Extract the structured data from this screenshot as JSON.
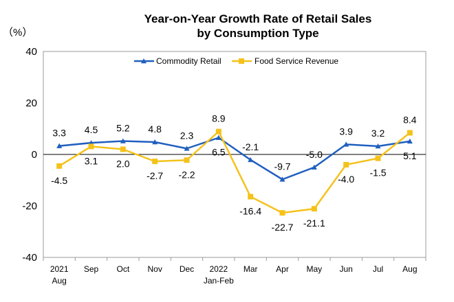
{
  "chart_data": {
    "type": "line",
    "title_line1": "Year-on-Year Growth Rate of Retail Sales",
    "title_line2": "by Consumption Type",
    "unit": "（%）",
    "ylim": [
      -40,
      40
    ],
    "yticks": [
      "40",
      "20",
      "0",
      "-20",
      "-40"
    ],
    "categories": [
      {
        "line1": "2021",
        "line2": "Aug"
      },
      {
        "line1": "Sep",
        "line2": ""
      },
      {
        "line1": "Oct",
        "line2": ""
      },
      {
        "line1": "Nov",
        "line2": ""
      },
      {
        "line1": "Dec",
        "line2": ""
      },
      {
        "line1": "2022",
        "line2": "Jan-Feb"
      },
      {
        "line1": "Mar",
        "line2": ""
      },
      {
        "line1": "Apr",
        "line2": ""
      },
      {
        "line1": "May",
        "line2": ""
      },
      {
        "line1": "Jun",
        "line2": ""
      },
      {
        "line1": "Jul",
        "line2": ""
      },
      {
        "line1": "Aug",
        "line2": ""
      }
    ],
    "series": [
      {
        "name": "Commodity Retail",
        "color": "#1f5fbf",
        "marker": "triangle",
        "values": [
          3.3,
          4.5,
          5.2,
          4.8,
          2.3,
          6.5,
          -2.1,
          -9.7,
          -5.0,
          3.9,
          3.2,
          5.1
        ],
        "labels": [
          "3.3",
          "4.5",
          "5.2",
          "4.8",
          "2.3",
          "6.5",
          "-2.1",
          "-9.7",
          "-5.0",
          "3.9",
          "3.2",
          "5.1"
        ]
      },
      {
        "name": "Food Service Revenue",
        "color": "#f5c21b",
        "marker": "square",
        "values": [
          -4.5,
          3.1,
          2.0,
          -2.7,
          -2.2,
          8.9,
          -16.4,
          -22.7,
          -21.1,
          -4.0,
          -1.5,
          8.4
        ],
        "labels": [
          "-4.5",
          "3.1",
          "2.0",
          "-2.7",
          "-2.2",
          "8.9",
          "-16.4",
          "-22.7",
          "-21.1",
          "-4.0",
          "-1.5",
          "8.4"
        ]
      }
    ],
    "legend_position": "top-center",
    "grid": false
  }
}
